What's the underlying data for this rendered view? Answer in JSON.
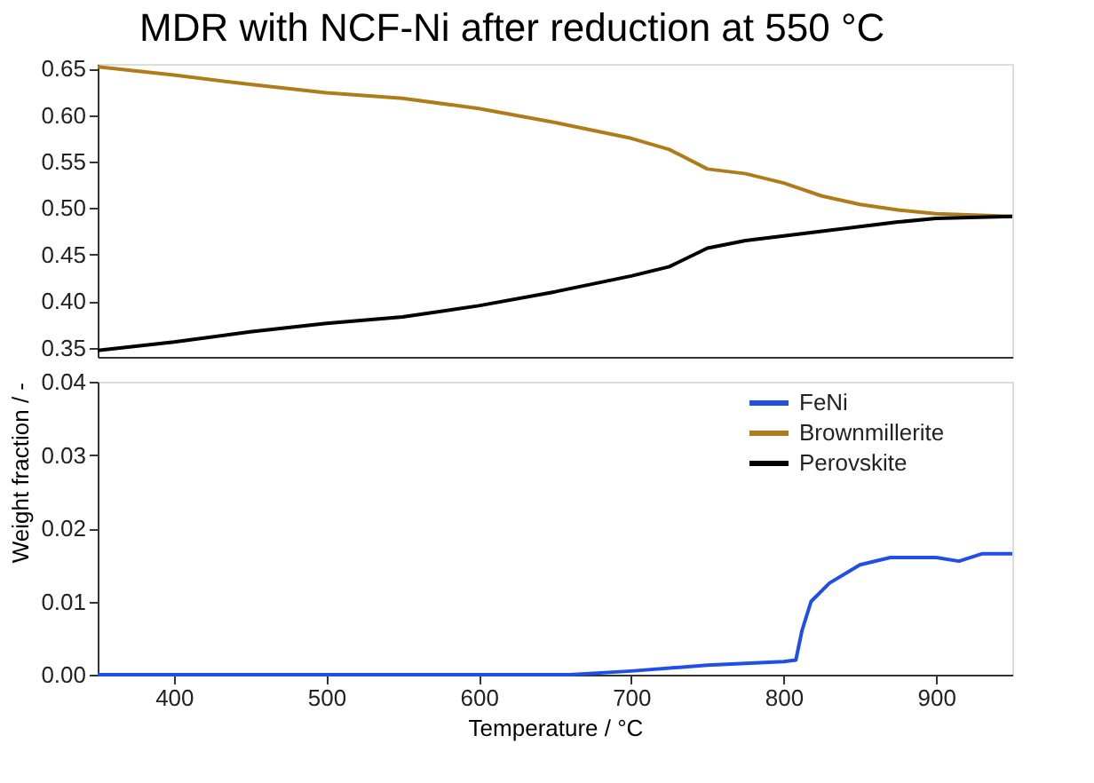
{
  "chart_data": [
    {
      "type": "line",
      "title": "MDR with NCF-Ni after reduction at 550 °C",
      "xlim": [
        350,
        950
      ],
      "xticks": [
        400,
        500,
        600,
        700,
        800,
        900
      ],
      "ylim": [
        0.34,
        0.655
      ],
      "yticks": [
        0.35,
        {
          "value": 0.4,
          "label": "0.40"
        },
        0.45,
        {
          "value": 0.5,
          "label": "0.50"
        },
        0.55,
        {
          "value": 0.6,
          "label": "0.60"
        },
        0.65
      ],
      "tick_labels": "y",
      "grid": false,
      "legend": "bottom right",
      "x": [
        350,
        400,
        450,
        500,
        550,
        600,
        650,
        700,
        725,
        750,
        775,
        800,
        825,
        850,
        875,
        900,
        950
      ],
      "series": [
        {
          "name": "Brownmillerite",
          "color": "#b07c1a",
          "values": [
            0.652,
            0.643,
            0.633,
            0.624,
            0.618,
            0.607,
            0.592,
            0.575,
            0.563,
            0.542,
            0.537,
            0.527,
            0.513,
            0.504,
            0.498,
            0.494,
            0.491
          ]
        },
        {
          "name": "Perovskite",
          "color": "#000000",
          "values": [
            0.347,
            0.356,
            0.367,
            0.376,
            0.383,
            0.395,
            0.41,
            0.427,
            0.437,
            0.457,
            0.465,
            0.47,
            0.475,
            0.48,
            0.485,
            0.489,
            0.491
          ]
        }
      ]
    },
    {
      "type": "line",
      "xlabel": "Temperature / °C",
      "ylabel": "Weight fraction / -",
      "xlim": [
        350,
        950
      ],
      "xticks": [
        400,
        500,
        600,
        700,
        800,
        900
      ],
      "ylim": [
        0,
        0.04
      ],
      "yticks": [
        {
          "value": 0,
          "label": "0.00"
        },
        0.01,
        0.02,
        0.03,
        0.04
      ],
      "grid": false,
      "legend": "top right",
      "x": [
        350,
        660,
        700,
        750,
        800,
        808,
        812,
        818,
        830,
        850,
        870,
        900,
        915,
        930,
        950
      ],
      "series": [
        {
          "name": "FeNi",
          "color": "#1f4fe8",
          "values": [
            0,
            0,
            0.0005,
            0.0013,
            0.0018,
            0.002,
            0.006,
            0.01,
            0.0125,
            0.015,
            0.016,
            0.016,
            0.0155,
            0.0165,
            0.0165
          ]
        }
      ]
    }
  ]
}
